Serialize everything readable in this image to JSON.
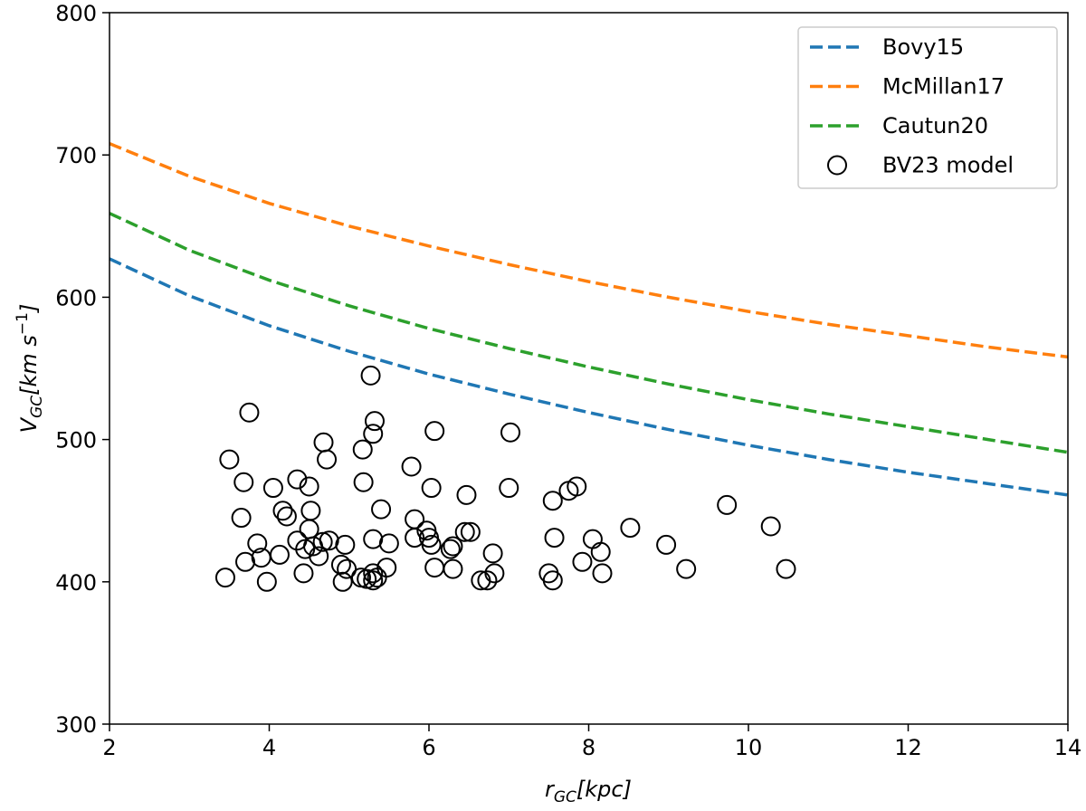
{
  "chart_data": {
    "type": "line-scatter",
    "xlabel": {
      "main": "r",
      "sub": "GC",
      "rest": "[kpc]"
    },
    "ylabel": {
      "main": "V",
      "sub": "GC",
      "rest": "[km s",
      "sup": "−1",
      "end": "]"
    },
    "xlim": [
      2,
      14
    ],
    "xticks": [
      2,
      4,
      6,
      8,
      10,
      12,
      14
    ],
    "ylim": [
      300,
      800
    ],
    "yticks": [
      300,
      400,
      500,
      600,
      700,
      800
    ],
    "legend": "upper right",
    "x": [
      2,
      3,
      4,
      5,
      6,
      7,
      8,
      9,
      10,
      11,
      12,
      13,
      14
    ],
    "series": [
      {
        "name": "Bovy15",
        "color": "#1f77b4",
        "values": [
          627,
          601,
          580,
          562,
          546,
          532,
          519,
          507,
          496,
          486,
          477,
          469,
          461
        ]
      },
      {
        "name": "McMillan17",
        "color": "#ff7f0e",
        "values": [
          708,
          685,
          666,
          650,
          636,
          623,
          611,
          600,
          590,
          581,
          573,
          565,
          558
        ]
      },
      {
        "name": "Cautun20",
        "color": "#2ca02c",
        "values": [
          659,
          633,
          612,
          594,
          578,
          564,
          551,
          539,
          528,
          518,
          509,
          500,
          491
        ]
      }
    ],
    "scatter": {
      "name": "BV23 model",
      "color": "#000000",
      "x": [
        3.45,
        3.5,
        3.65,
        3.68,
        3.7,
        3.75,
        3.85,
        3.9,
        3.97,
        4.05,
        4.13,
        4.17,
        4.22,
        4.35,
        4.35,
        4.43,
        4.45,
        4.5,
        4.5,
        4.52,
        4.55,
        4.62,
        4.67,
        4.68,
        4.72,
        4.75,
        4.9,
        4.92,
        4.95,
        4.97,
        5.15,
        5.17,
        5.18,
        5.22,
        5.27,
        5.3,
        5.3,
        5.32,
        5.3,
        5.3,
        5.35,
        5.4,
        5.47,
        5.5,
        5.78,
        5.82,
        5.82,
        5.97,
        6.0,
        6.03,
        6.03,
        6.07,
        6.07,
        6.27,
        6.3,
        6.3,
        6.45,
        6.47,
        6.52,
        6.65,
        6.73,
        6.8,
        6.82,
        7.0,
        7.02,
        7.5,
        7.55,
        7.55,
        7.57,
        7.75,
        7.85,
        7.92,
        8.05,
        8.15,
        8.17,
        8.52,
        8.97,
        9.22,
        9.73,
        10.28,
        10.47
      ],
      "values": [
        403,
        486,
        445,
        470,
        414,
        519,
        427,
        417,
        400,
        466,
        419,
        450,
        446,
        472,
        429,
        406,
        423,
        467,
        437,
        450,
        425,
        418,
        428,
        498,
        486,
        429,
        412,
        400,
        426,
        409,
        403,
        493,
        470,
        402,
        545,
        504,
        430,
        513,
        406,
        401,
        403,
        451,
        410,
        427,
        481,
        444,
        431,
        436,
        431,
        426,
        466,
        506,
        410,
        423,
        425,
        409,
        435,
        461,
        435,
        401,
        401,
        420,
        406,
        466,
        505,
        406,
        457,
        401,
        431,
        464,
        467,
        414,
        430,
        421,
        406,
        438,
        426,
        409,
        454,
        439,
        409
      ]
    }
  }
}
